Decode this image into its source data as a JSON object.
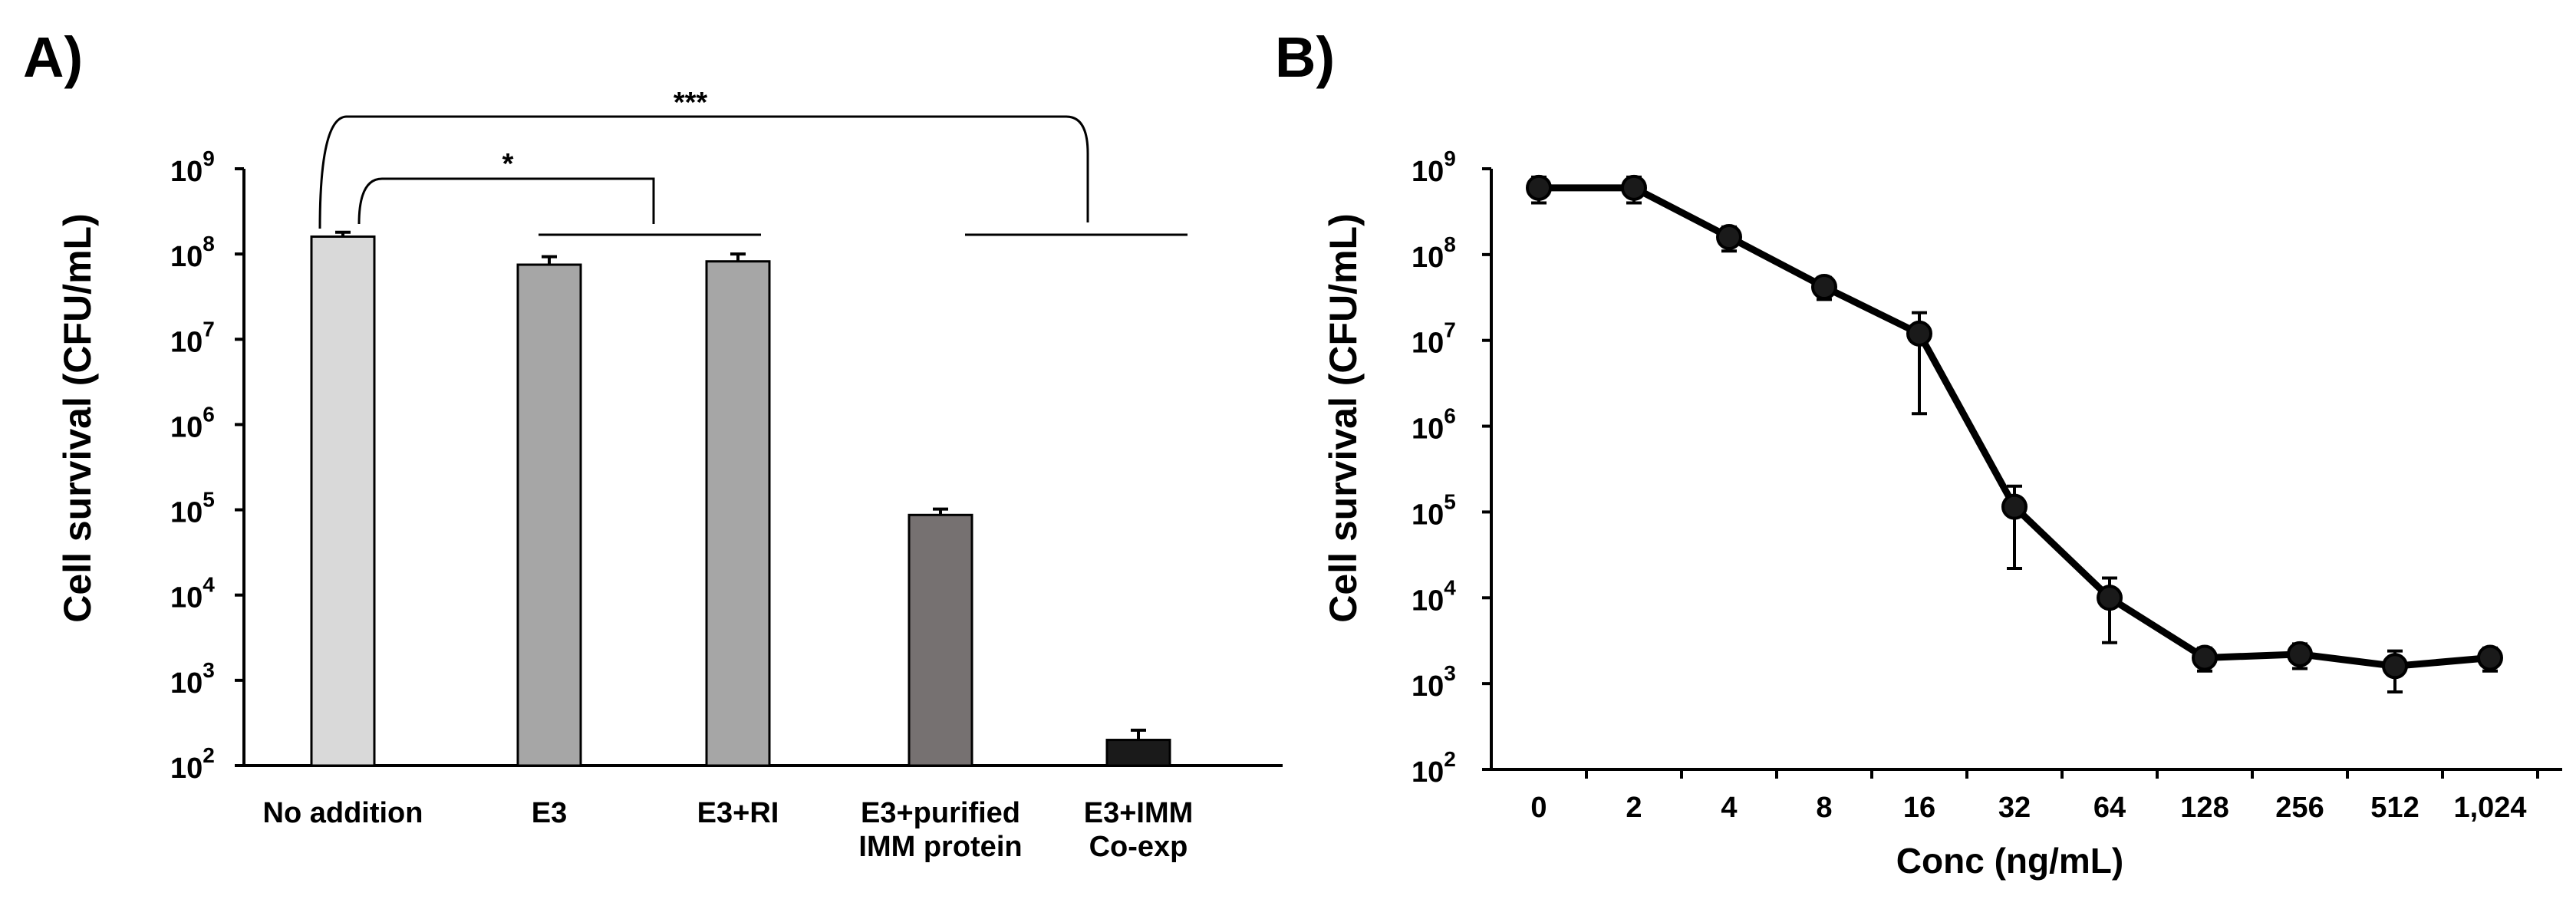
{
  "chart_data": [
    {
      "panel": "A)",
      "type": "bar",
      "ylabel": "Cell survival (CFU/mL)",
      "yscale": "log",
      "ylim": [
        100,
        1000000000
      ],
      "ytick_bases": [
        "10",
        "10",
        "10",
        "10",
        "10",
        "10",
        "10",
        "10"
      ],
      "ytick_exps": [
        "2",
        "3",
        "4",
        "5",
        "6",
        "7",
        "8",
        "9"
      ],
      "categories": [
        "No addition",
        "E3",
        "E3+RI",
        "E3+purified IMM protein",
        "E3+IMM Co-exp"
      ],
      "category_lines": [
        [
          "No addition"
        ],
        [
          "E3"
        ],
        [
          "E3+RI"
        ],
        [
          "E3+purified",
          "IMM protein"
        ],
        [
          "E3+IMM",
          "Co-exp"
        ]
      ],
      "values": [
        160000000,
        75000000,
        82000000,
        87000,
        200
      ],
      "errors": [
        20000000,
        18000000,
        18000000,
        15000,
        60
      ],
      "bar_colors": [
        "#d9d9d9",
        "#a6a6a6",
        "#a6a6a6",
        "#767171",
        "#1a1a1a"
      ],
      "significance": [
        "*",
        "***"
      ]
    },
    {
      "panel": "B)",
      "type": "line",
      "xlabel": "Conc (ng/mL)",
      "ylabel": "Cell survival (CFU/mL)",
      "yscale": "log",
      "ylim": [
        100,
        1000000000
      ],
      "ytick_bases": [
        "10",
        "10",
        "10",
        "10",
        "10",
        "10",
        "10",
        "10"
      ],
      "ytick_exps": [
        "2",
        "3",
        "4",
        "5",
        "6",
        "7",
        "8",
        "9"
      ],
      "x": [
        "0",
        "2",
        "4",
        "8",
        "16",
        "32",
        "64",
        "128",
        "256",
        "512",
        "1,024"
      ],
      "values": [
        600000000,
        600000000,
        160000000,
        42000000,
        12000000,
        115000,
        10000,
        2000,
        2200,
        1600,
        2000
      ],
      "err_low": [
        200000000,
        200000000,
        50000000,
        12000000,
        10600000,
        93000,
        7000,
        600,
        700,
        800,
        600
      ],
      "err_high": [
        200000000,
        200000000,
        50000000,
        12000000,
        9000000,
        85000,
        7000,
        600,
        700,
        800,
        600
      ]
    }
  ]
}
